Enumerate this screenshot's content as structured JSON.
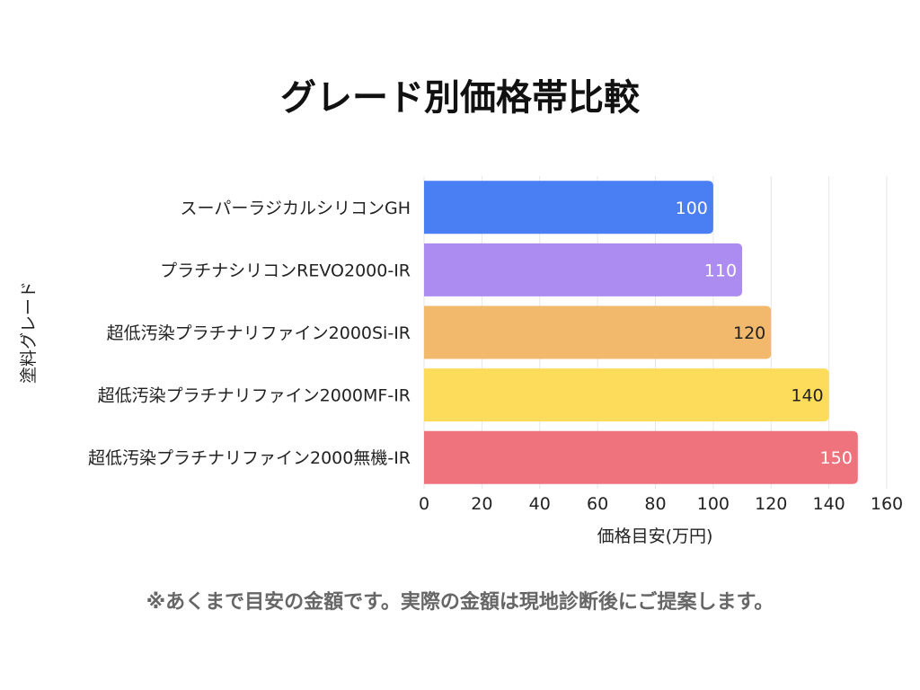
{
  "page": {
    "title": "グレード別価格帯比較",
    "footnote": "※あくまで目安の金額です。実際の金額は現地診断後にご提案します。"
  },
  "chart_data": {
    "type": "bar",
    "orientation": "horizontal",
    "title": "グレード別価格帯比較",
    "xlabel": "価格目安(万円)",
    "ylabel": "塗料グレード",
    "xlim": [
      0,
      160
    ],
    "x_ticks": [
      0,
      20,
      40,
      60,
      80,
      100,
      120,
      140,
      160
    ],
    "grid": true,
    "categories": [
      "スーパーラジカルシリコンGH",
      "プラチナシリコンREVO2000-IR",
      "超低汚染プラチナリファイン2000Si-IR",
      "超低汚染プラチナリファイン2000MF-IR",
      "超低汚染プラチナリファイン2000無機-IR"
    ],
    "values": [
      100,
      110,
      120,
      140,
      150
    ],
    "colors": [
      "#4a7ff4",
      "#ad8cf2",
      "#f2b86c",
      "#fddc5c",
      "#ef737d"
    ],
    "value_label_colors": [
      "#ffffff",
      "#ffffff",
      "#222222",
      "#222222",
      "#ffffff"
    ]
  }
}
